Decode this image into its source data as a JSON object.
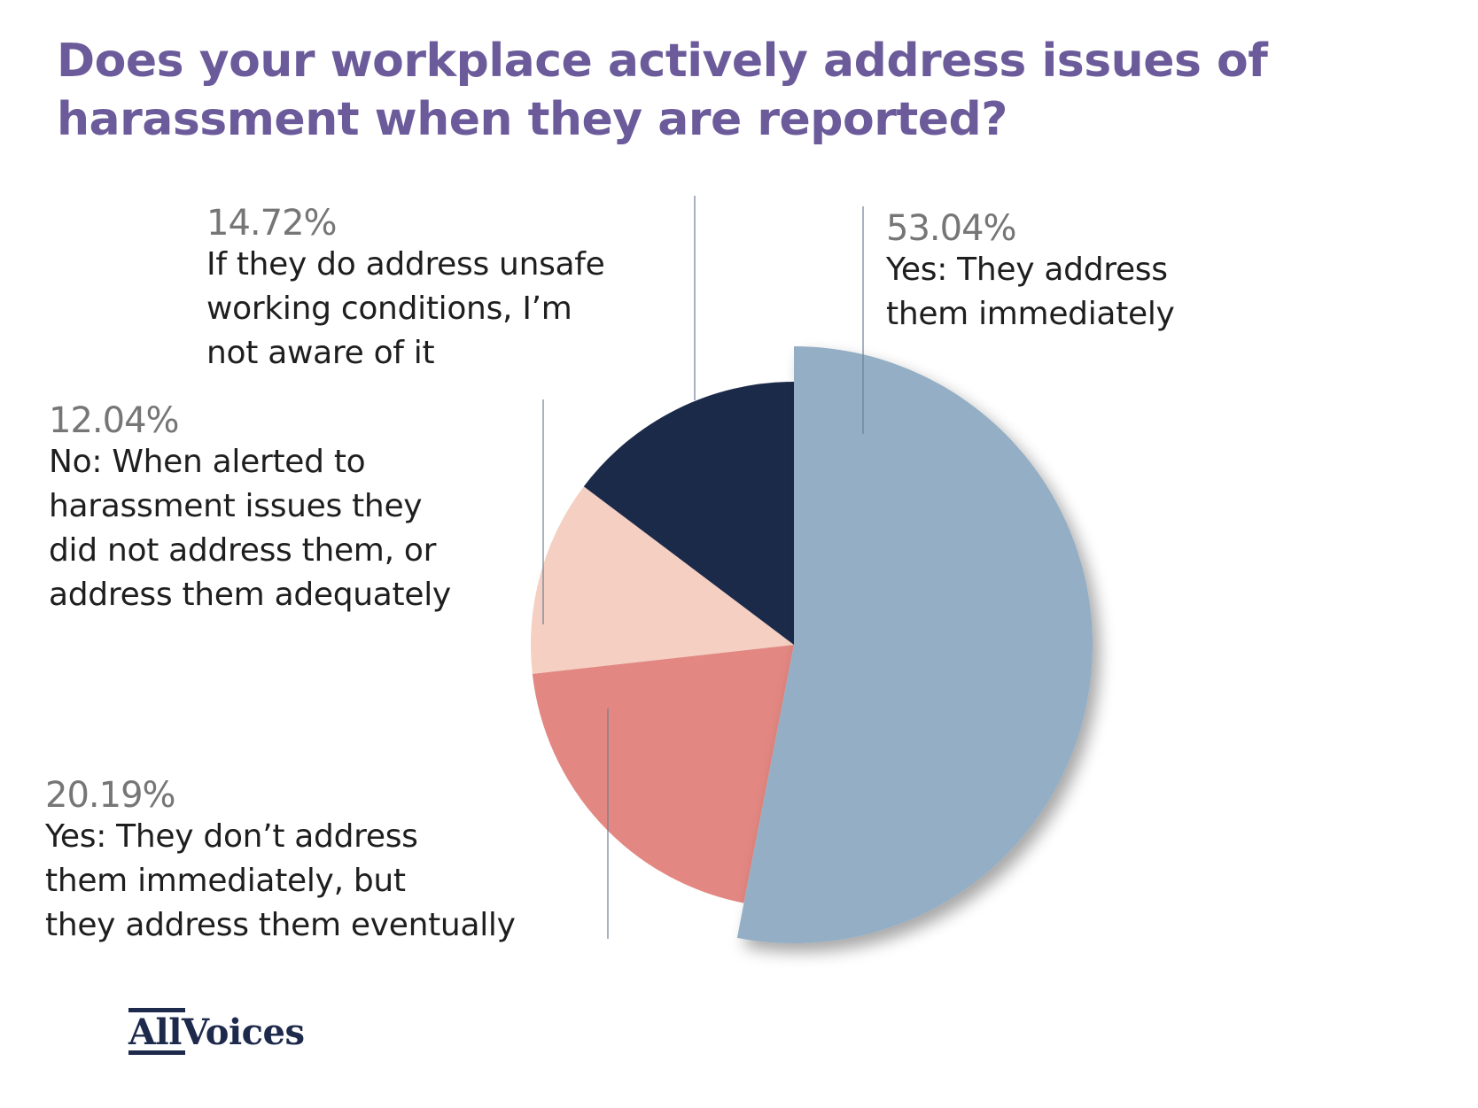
{
  "title": "Does your workplace actively address issues of harassment when they are reported?",
  "brand": {
    "logo_part1": "All",
    "logo_part2": "Voices",
    "color": "#1d2a4b"
  },
  "labels": [
    {
      "pct": "53.04%",
      "text": "Yes: They address\nthem immediately"
    },
    {
      "pct": "20.19%",
      "text": "Yes: They don’t address\nthem immediately, but\nthey address them eventually"
    },
    {
      "pct": "12.04%",
      "text": "No: When alerted to\nharassment issues they\ndid not address them, or\naddress them adequately"
    },
    {
      "pct": "14.72%",
      "text": "If they do address unsafe\nworking conditions, I’m\nnot aware of it"
    }
  ],
  "chart_data": {
    "type": "pie",
    "title": "Does your workplace actively address issues of harassment when they are reported?",
    "categories": [
      "Yes: They address them immediately",
      "Yes: They don’t address them immediately, but they address them eventually",
      "No: When alerted to harassment issues they did not address them, or address them adequately",
      "If they do address unsafe working conditions, I’m not aware of it"
    ],
    "values": [
      53.04,
      20.19,
      12.04,
      14.72
    ],
    "colors": [
      "#93aec5",
      "#e38782",
      "#f4cfc2",
      "#1c2a4a"
    ],
    "exploded": [
      true,
      false,
      false,
      false
    ],
    "start_angle": "12 o'clock, clockwise",
    "legend": "none (direct labels with leader lines)"
  }
}
